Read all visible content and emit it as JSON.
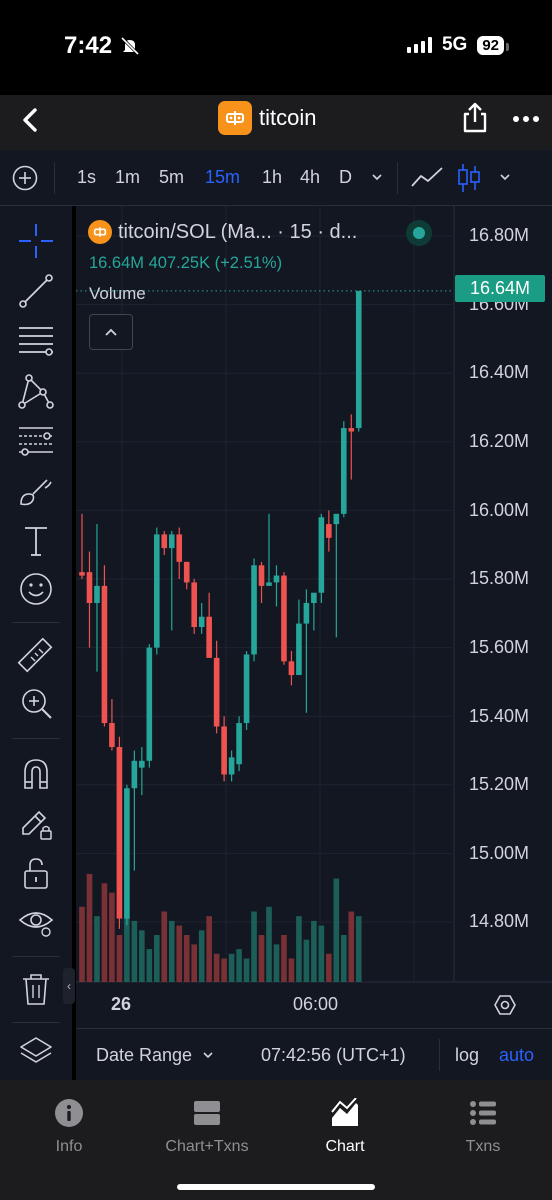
{
  "status_bar": {
    "time": "7:42",
    "network": "5G",
    "battery": "92"
  },
  "header": {
    "title": "titcoin"
  },
  "toolbar": {
    "timeframes": [
      "1s",
      "1m",
      "5m",
      "15m",
      "1h",
      "4h",
      "D"
    ],
    "active_timeframe": "15m"
  },
  "legend": {
    "symbol": "titcoin/SOL (Ma... · 15 · d...",
    "values": "16.64M  407.25K (+2.51%)",
    "volume_label": "Volume"
  },
  "price_axis": {
    "ticks": [
      "16.80M",
      "16.60M",
      "16.40M",
      "16.20M",
      "16.00M",
      "15.80M",
      "15.60M",
      "15.40M",
      "15.20M",
      "15.00M",
      "14.80M"
    ],
    "last_price": "16.64M"
  },
  "time_axis": {
    "labels": [
      "26",
      "06:00"
    ]
  },
  "bottom_bar": {
    "date_range": "Date Range",
    "clock": "07:42:56 (UTC+1)",
    "log": "log",
    "auto": "auto"
  },
  "nav": {
    "items": [
      {
        "label": "Info",
        "icon": "info-icon"
      },
      {
        "label": "Chart+Txns",
        "icon": "split-view-icon"
      },
      {
        "label": "Chart",
        "icon": "chart-icon"
      },
      {
        "label": "Txns",
        "icon": "list-icon"
      }
    ],
    "active": "Chart"
  },
  "colors": {
    "up": "#26a69a",
    "down": "#ef5350",
    "accent": "#2962ff",
    "background": "#131722"
  },
  "chart_data": {
    "type": "candlestick",
    "unit": "M",
    "y_range": [
      14.62,
      16.84
    ],
    "grid": true,
    "candles": [
      {
        "o": 15.82,
        "h": 15.99,
        "l": 15.8,
        "c": 15.81
      },
      {
        "o": 15.82,
        "h": 15.88,
        "l": 15.6,
        "c": 15.73
      },
      {
        "o": 15.73,
        "h": 15.96,
        "l": 15.53,
        "c": 15.78
      },
      {
        "o": 15.78,
        "h": 15.84,
        "l": 15.37,
        "c": 15.38
      },
      {
        "o": 15.38,
        "h": 15.45,
        "l": 15.3,
        "c": 15.31
      },
      {
        "o": 15.31,
        "h": 15.34,
        "l": 14.78,
        "c": 14.81
      },
      {
        "o": 14.81,
        "h": 15.2,
        "l": 14.79,
        "c": 15.19
      },
      {
        "o": 15.19,
        "h": 15.3,
        "l": 14.95,
        "c": 15.27
      },
      {
        "o": 15.25,
        "h": 15.31,
        "l": 15.17,
        "c": 15.27
      },
      {
        "o": 15.27,
        "h": 15.61,
        "l": 15.25,
        "c": 15.6
      },
      {
        "o": 15.6,
        "h": 15.95,
        "l": 15.58,
        "c": 15.93
      },
      {
        "o": 15.93,
        "h": 15.94,
        "l": 15.87,
        "c": 15.89
      },
      {
        "o": 15.89,
        "h": 15.94,
        "l": 15.65,
        "c": 15.93
      },
      {
        "o": 15.93,
        "h": 15.95,
        "l": 15.8,
        "c": 15.85
      },
      {
        "o": 15.85,
        "h": 15.85,
        "l": 15.77,
        "c": 15.79
      },
      {
        "o": 15.79,
        "h": 15.8,
        "l": 15.64,
        "c": 15.66
      },
      {
        "o": 15.66,
        "h": 15.73,
        "l": 15.64,
        "c": 15.69
      },
      {
        "o": 15.69,
        "h": 15.76,
        "l": 15.57,
        "c": 15.57
      },
      {
        "o": 15.57,
        "h": 15.62,
        "l": 15.35,
        "c": 15.37
      },
      {
        "o": 15.37,
        "h": 15.4,
        "l": 15.21,
        "c": 15.23
      },
      {
        "o": 15.23,
        "h": 15.3,
        "l": 15.21,
        "c": 15.28
      },
      {
        "o": 15.26,
        "h": 15.4,
        "l": 15.24,
        "c": 15.38
      },
      {
        "o": 15.38,
        "h": 15.59,
        "l": 15.36,
        "c": 15.58
      },
      {
        "o": 15.58,
        "h": 15.86,
        "l": 15.56,
        "c": 15.84
      },
      {
        "o": 15.84,
        "h": 15.85,
        "l": 15.73,
        "c": 15.78
      },
      {
        "o": 15.78,
        "h": 15.99,
        "l": 15.78,
        "c": 15.79
      },
      {
        "o": 15.79,
        "h": 15.84,
        "l": 15.72,
        "c": 15.81
      },
      {
        "o": 15.81,
        "h": 15.82,
        "l": 15.55,
        "c": 15.56
      },
      {
        "o": 15.56,
        "h": 15.59,
        "l": 15.49,
        "c": 15.52
      },
      {
        "o": 15.52,
        "h": 15.74,
        "l": 15.52,
        "c": 15.67
      },
      {
        "o": 15.67,
        "h": 15.77,
        "l": 15.41,
        "c": 15.73
      },
      {
        "o": 15.73,
        "h": 15.75,
        "l": 15.65,
        "c": 15.76
      },
      {
        "o": 15.76,
        "h": 15.99,
        "l": 15.73,
        "c": 15.98
      },
      {
        "o": 15.96,
        "h": 16.0,
        "l": 15.88,
        "c": 15.92
      },
      {
        "o": 15.96,
        "h": 15.99,
        "l": 15.63,
        "c": 15.99
      },
      {
        "o": 15.99,
        "h": 16.26,
        "l": 15.98,
        "c": 16.24
      },
      {
        "o": 16.24,
        "h": 16.28,
        "l": 16.09,
        "c": 16.23
      },
      {
        "o": 16.24,
        "h": 16.64,
        "l": 16.23,
        "c": 16.64
      }
    ],
    "volume": [
      0.32,
      0.46,
      0.28,
      0.42,
      0.38,
      0.2,
      0.28,
      0.26,
      0.22,
      0.14,
      0.2,
      0.3,
      0.26,
      0.24,
      0.2,
      0.16,
      0.22,
      0.28,
      0.12,
      0.1,
      0.12,
      0.14,
      0.1,
      0.3,
      0.2,
      0.32,
      0.16,
      0.2,
      0.1,
      0.28,
      0.18,
      0.26,
      0.24,
      0.12,
      0.44,
      0.2,
      0.3,
      0.28
    ],
    "last_price": 16.64
  }
}
